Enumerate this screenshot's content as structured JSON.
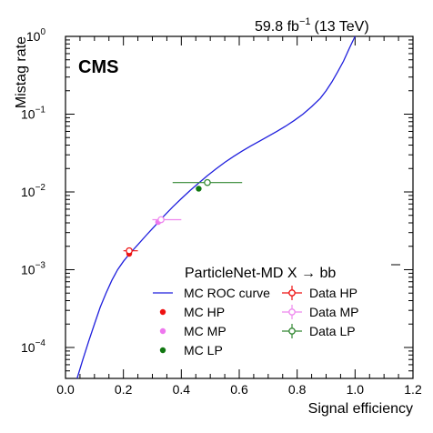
{
  "header": {
    "lumi_text": "59.8 fb",
    "lumi_exp": "−1",
    "energy_text": "(13 TeV)",
    "experiment": "CMS"
  },
  "chart_data": {
    "type": "line",
    "xlabel": "Signal efficiency",
    "ylabel": "Mistag rate",
    "xlim": [
      0.0,
      1.2
    ],
    "ylim": [
      4e-05,
      1.0
    ],
    "yscale": "log",
    "x_ticks": [
      "0.0",
      "0.2",
      "0.4",
      "0.6",
      "0.8",
      "1.0",
      "1.2"
    ],
    "y_ticks": [
      "10",
      "10",
      "10",
      "10",
      "10"
    ],
    "y_tick_exps": [
      "−4",
      "−3",
      "−2",
      "−1",
      "0"
    ],
    "y_tick_values": [
      0.0001,
      0.001,
      0.01,
      0.1,
      1.0
    ],
    "legend_position": "bottom-right",
    "legend_title": "ParticleNet-MD X → bb",
    "roc_curve": {
      "name": "MC ROC curve",
      "color": "#1f1fdd",
      "x": [
        0.04,
        0.06,
        0.08,
        0.1,
        0.12,
        0.14,
        0.16,
        0.18,
        0.2,
        0.22,
        0.25,
        0.28,
        0.31,
        0.34,
        0.37,
        0.4,
        0.43,
        0.46,
        0.49,
        0.52,
        0.55,
        0.58,
        0.61,
        0.64,
        0.67,
        0.7,
        0.73,
        0.76,
        0.79,
        0.82,
        0.85,
        0.88,
        0.9,
        0.92,
        0.94,
        0.96,
        0.97,
        0.98,
        0.99,
        1.0
      ],
      "y": [
        4e-05,
        7e-05,
        0.00012,
        0.0002,
        0.00033,
        0.0005,
        0.00073,
        0.001,
        0.00128,
        0.00158,
        0.0021,
        0.0028,
        0.0037,
        0.0049,
        0.0064,
        0.0082,
        0.0104,
        0.013,
        0.0162,
        0.0198,
        0.024,
        0.0285,
        0.0335,
        0.039,
        0.045,
        0.052,
        0.06,
        0.07,
        0.083,
        0.1,
        0.125,
        0.16,
        0.2,
        0.26,
        0.35,
        0.48,
        0.58,
        0.7,
        0.84,
        1.0
      ]
    },
    "mc_points": [
      {
        "name": "MC HP",
        "color": "#ee1111",
        "x": 0.22,
        "y": 0.0016
      },
      {
        "name": "MC MP",
        "color": "#ee77ee",
        "x": 0.32,
        "y": 0.0041
      },
      {
        "name": "MC LP",
        "color": "#117711",
        "x": 0.46,
        "y": 0.011
      }
    ],
    "data_points": [
      {
        "name": "Data HP",
        "color": "#ee1111",
        "x": 0.22,
        "y": 0.00175,
        "xerr": [
          0.2,
          0.25
        ],
        "yerr": [
          0.00165,
          0.00185
        ]
      },
      {
        "name": "Data MP",
        "color": "#ee88ee",
        "x": 0.33,
        "y": 0.0044,
        "xerr": [
          0.3,
          0.4
        ],
        "yerr": [
          0.0042,
          0.0046
        ]
      },
      {
        "name": "Data LP",
        "color": "#338833",
        "x": 0.49,
        "y": 0.0132,
        "xerr": [
          0.37,
          0.61
        ],
        "yerr": [
          0.0125,
          0.014
        ]
      }
    ]
  }
}
